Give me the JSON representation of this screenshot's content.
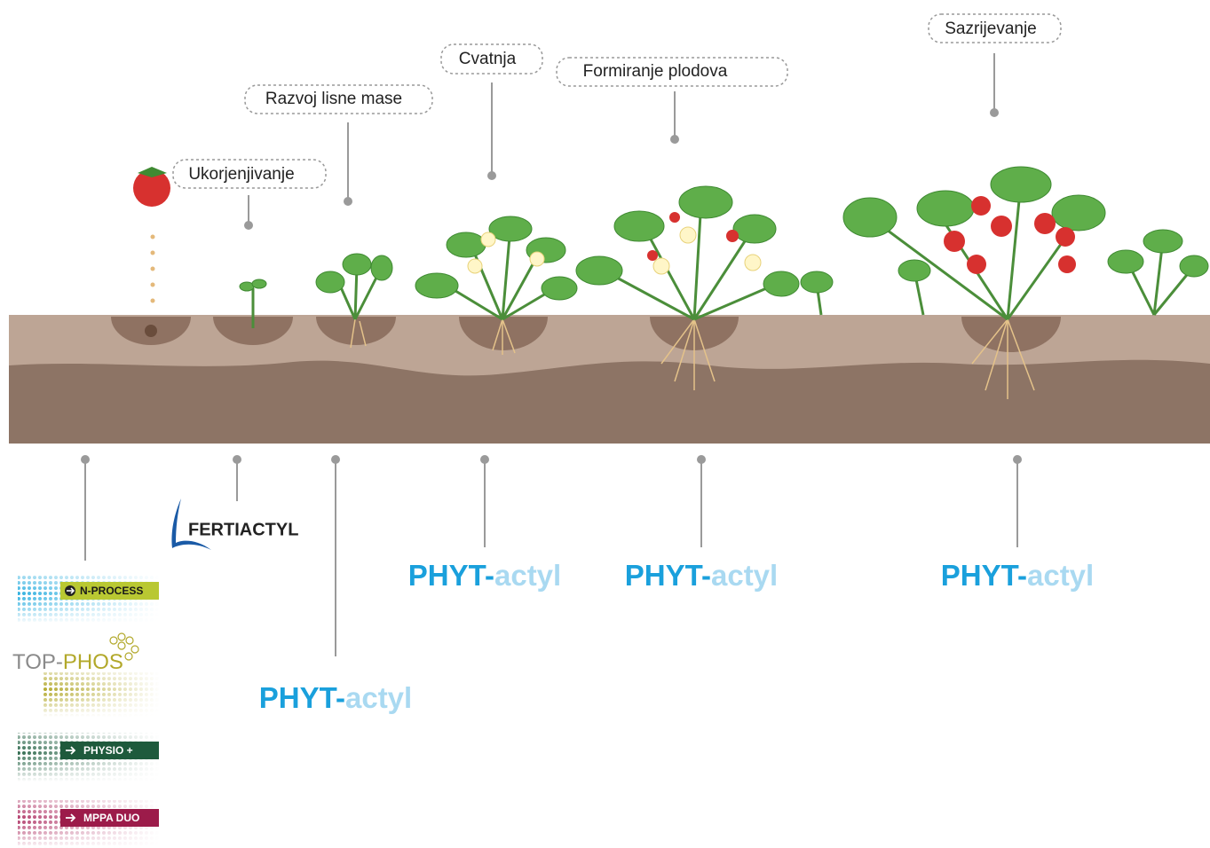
{
  "stages": [
    {
      "label": "Ukorjenjivanje"
    },
    {
      "label": "Razvoj lisne mase"
    },
    {
      "label": "Cvatnja"
    },
    {
      "label": "Formiranje plodova"
    },
    {
      "label": "Sazrijevanje"
    }
  ],
  "products": {
    "fertiactyl": "FERTIACTYL",
    "phytactyl": [
      {
        "prefix": "PHYT-",
        "suffix": "actyl"
      },
      {
        "prefix": "PHYT-",
        "suffix": "actyl"
      },
      {
        "prefix": "PHYT-",
        "suffix": "actyl"
      },
      {
        "prefix": "PHYT-",
        "suffix": "actyl"
      }
    ]
  },
  "badges": [
    {
      "label": "N-PROCESS"
    },
    {
      "prefix": "TOP-",
      "suffix": "PHOS"
    },
    {
      "label": "PHYSIO +"
    },
    {
      "label": "MPPA DUO"
    }
  ]
}
